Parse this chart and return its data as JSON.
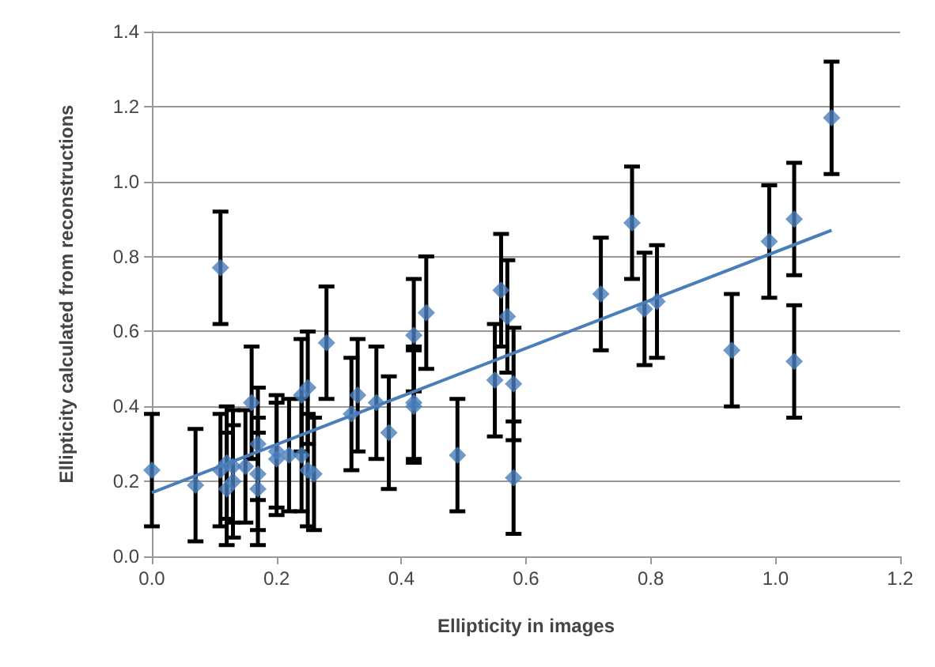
{
  "chart_data": {
    "type": "scatter",
    "xlabel": "Ellipticity in images",
    "ylabel": "Ellipticity calculated from reconstructions",
    "xlim": [
      0,
      1.2
    ],
    "xticks": [
      {
        "value": 0,
        "label": "0.0"
      },
      {
        "value": 0.2,
        "label": "0.2"
      },
      {
        "value": 0.4,
        "label": "0.4"
      },
      {
        "value": 0.6,
        "label": "0.6"
      },
      {
        "value": 0.8,
        "label": "0.8"
      },
      {
        "value": 1,
        "label": "1.0"
      },
      {
        "value": 1.2,
        "label": "1.2"
      }
    ],
    "ylim": [
      0,
      1.4
    ],
    "yticks": [
      {
        "value": 0,
        "label": "0.0"
      },
      {
        "value": 0.2,
        "label": "0.2"
      },
      {
        "value": 0.4,
        "label": "0.4"
      },
      {
        "value": 0.6,
        "label": "0.6"
      },
      {
        "value": 0.8,
        "label": "0.8"
      },
      {
        "value": 1,
        "label": "1.0"
      },
      {
        "value": 1.2,
        "label": "1.2"
      },
      {
        "value": 1.4,
        "label": "1.4"
      }
    ],
    "grid": "y",
    "series": [
      {
        "color": "#4a7ebb",
        "marker": "diamond",
        "x": [
          0,
          0.07,
          0.11,
          0.11,
          0.12,
          0.12,
          0.13,
          0.13,
          0.15,
          0.16,
          0.17,
          0.17,
          0.17,
          0.2,
          0.2,
          0.22,
          0.24,
          0.24,
          0.25,
          0.25,
          0.26,
          0.28,
          0.32,
          0.33,
          0.36,
          0.38,
          0.42,
          0.42,
          0.42,
          0.44,
          0.49,
          0.55,
          0.56,
          0.57,
          0.58,
          0.58,
          0.72,
          0.77,
          0.79,
          0.81,
          0.93,
          0.99,
          1.03,
          1.03,
          1.09
        ],
        "values": [
          0.23,
          0.19,
          0.77,
          0.23,
          0.25,
          0.18,
          0.2,
          0.24,
          0.24,
          0.41,
          0.3,
          0.22,
          0.18,
          0.28,
          0.26,
          0.27,
          0.27,
          0.43,
          0.45,
          0.23,
          0.22,
          0.57,
          0.38,
          0.43,
          0.41,
          0.33,
          0.41,
          0.4,
          0.59,
          0.65,
          0.27,
          0.47,
          0.71,
          0.64,
          0.46,
          0.21,
          0.7,
          0.89,
          0.66,
          0.68,
          0.55,
          0.84,
          0.9,
          0.52,
          1.17
        ],
        "errors": [
          0.15,
          0.15,
          0.15,
          0.15,
          0.15,
          0.15,
          0.15,
          0.15,
          0.15,
          0.15,
          0.15,
          0.15,
          0.15,
          0.15,
          0.15,
          0.15,
          0.15,
          0.15,
          0.15,
          0.15,
          0.15,
          0.15,
          0.15,
          0.15,
          0.15,
          0.15,
          0.15,
          0.15,
          0.15,
          0.15,
          0.15,
          0.15,
          0.15,
          0.15,
          0.15,
          0.15,
          0.15,
          0.15,
          0.15,
          0.15,
          0.15,
          0.15,
          0.15,
          0.15,
          0.15
        ]
      },
      {
        "type": "line",
        "color": "#4a7ebb",
        "marker": "none",
        "x": [
          0,
          1.09
        ],
        "values": [
          0.17,
          0.87
        ]
      }
    ]
  }
}
